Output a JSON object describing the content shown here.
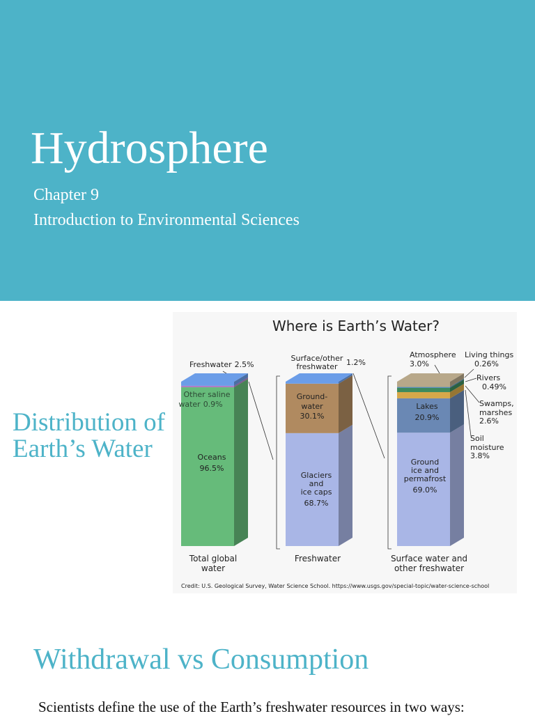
{
  "header": {
    "title": "Hydrosphere",
    "chapter": "Chapter 9",
    "course": "Introduction to Environmental Sciences"
  },
  "section_1": {
    "heading_lines": [
      "Distribution of",
      "Earth’s Water"
    ]
  },
  "figure": {
    "title": "Where is Earth’s Water?",
    "bars": [
      {
        "caption": [
          "Total global",
          "water"
        ],
        "segments": [
          {
            "name": [
              "Oceans"
            ],
            "value": 96.5,
            "value_label": "96.5%",
            "color": "#66bb7a"
          },
          {
            "name": [
              "Other saline",
              "water"
            ],
            "value": 0.9,
            "value_label": "0.9%",
            "color": "#b07cc6"
          },
          {
            "name": [
              "Freshwater"
            ],
            "value": 2.5,
            "value_label": "2.5%",
            "color": "#6b9de8"
          }
        ]
      },
      {
        "caption": [
          "Freshwater"
        ],
        "segments": [
          {
            "name": [
              "Glaciers",
              "and",
              "ice caps"
            ],
            "value": 68.7,
            "value_label": "68.7%",
            "color": "#a9b6e6"
          },
          {
            "name": [
              "Ground-",
              "water"
            ],
            "value": 30.1,
            "value_label": "30.1%",
            "color": "#b08a60"
          },
          {
            "name": [
              "Surface/other",
              "freshwater"
            ],
            "value": 1.2,
            "value_label": "1.2%",
            "color": "#6b9de8"
          }
        ]
      },
      {
        "caption": [
          "Surface water and",
          "other freshwater"
        ],
        "segments": [
          {
            "name": [
              "Ground",
              "ice and",
              "permafrost"
            ],
            "value": 69.0,
            "value_label": "69.0%",
            "color": "#a9b6e6"
          },
          {
            "name": [
              "Lakes"
            ],
            "value": 20.9,
            "value_label": "20.9%",
            "color": "#6a88b4"
          },
          {
            "name": [
              "Soil",
              "moisture"
            ],
            "value": 3.8,
            "value_label": "3.8%",
            "color": "#d6a84a"
          },
          {
            "name": [
              "Swamps,",
              "marshes"
            ],
            "value": 2.6,
            "value_label": "2.6%",
            "color": "#3e8a5c"
          },
          {
            "name": [
              "Rivers"
            ],
            "value": 0.49,
            "value_label": "0.49%",
            "color": "#4a7fc0"
          },
          {
            "name": [
              "Living things"
            ],
            "value": 0.26,
            "value_label": "0.26%",
            "color": "#8a9a6a"
          },
          {
            "name": [
              "Atmosphere"
            ],
            "value": 3.0,
            "value_label": "3.0%",
            "color": "#b8a88a"
          }
        ]
      }
    ],
    "credit": "Credit: U.S. Geological Survey, Water Science School. https://www.usgs.gov/special-topic/water-science-school"
  },
  "section_2": {
    "heading": "Withdrawal vs Consumption",
    "text": "Scientists define the use of the Earth’s freshwater resources in two ways:"
  }
}
